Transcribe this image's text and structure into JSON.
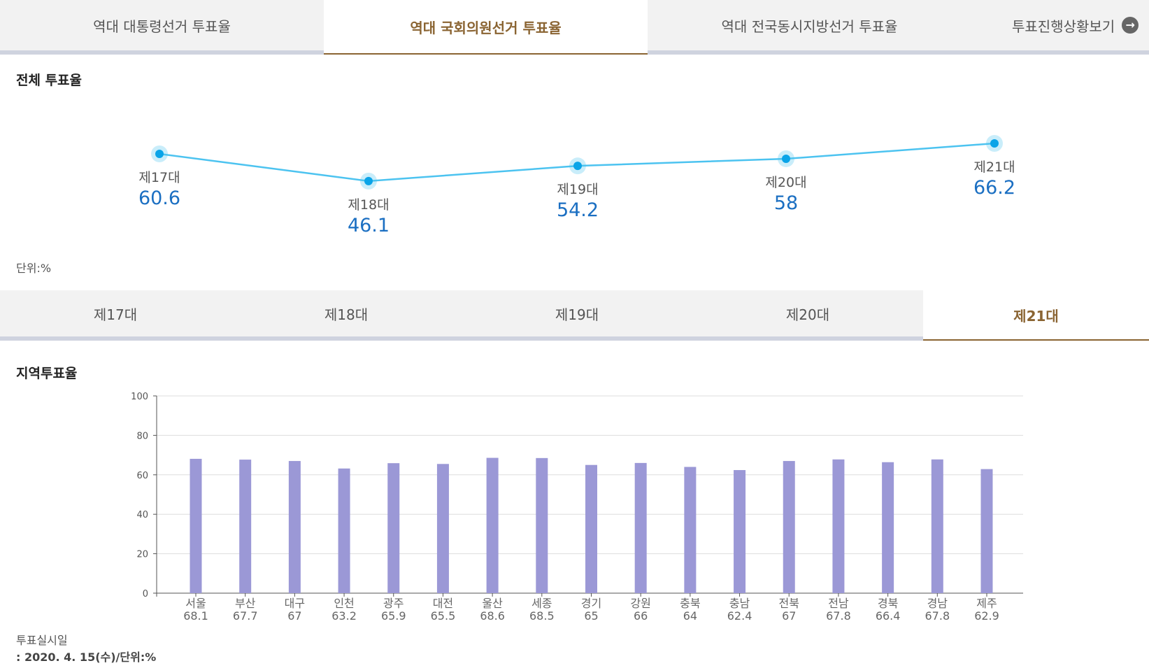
{
  "top_tabs": {
    "presidential": "역대 대통령선거 투표율",
    "national_assembly": "역대 국회의원선거 투표율",
    "local": "역대 전국동시지방선거 투표율",
    "progress": "투표진행상황보기",
    "progress_icon": "arrow-right-circle-icon"
  },
  "overall": {
    "title": "전체 투표율",
    "unit": "단위:%"
  },
  "sub_tabs": [
    "제17대",
    "제18대",
    "제19대",
    "제20대",
    "제21대"
  ],
  "regional": {
    "title": "지역투표율",
    "footnote_label": "투표실시일",
    "footnote_value": ": 2020. 4. 15(수)/단위:%"
  },
  "colors": {
    "accent": "#8a6432",
    "line": "#4cc3f0",
    "point": "#0aa4e8",
    "value_text": "#1b6fc2",
    "bar": "#9b98d6"
  },
  "chart_data": [
    {
      "type": "line",
      "title": "전체 투표율",
      "categories": [
        "제17대",
        "제18대",
        "제19대",
        "제20대",
        "제21대"
      ],
      "values": [
        60.6,
        46.1,
        54.2,
        58,
        66.2
      ],
      "unit": "단위:%"
    },
    {
      "type": "bar",
      "title": "지역투표율",
      "categories": [
        "서울",
        "부산",
        "대구",
        "인천",
        "광주",
        "대전",
        "울산",
        "세종",
        "경기",
        "강원",
        "충북",
        "충남",
        "전북",
        "전남",
        "경북",
        "경남",
        "제주"
      ],
      "values": [
        68.1,
        67.7,
        67,
        63.2,
        65.9,
        65.5,
        68.6,
        68.5,
        65,
        66,
        64,
        62.4,
        67,
        67.8,
        66.4,
        67.8,
        62.9
      ],
      "ylim": [
        0,
        100
      ],
      "yticks": [
        0,
        20,
        40,
        60,
        80,
        100
      ],
      "grid": true
    }
  ]
}
